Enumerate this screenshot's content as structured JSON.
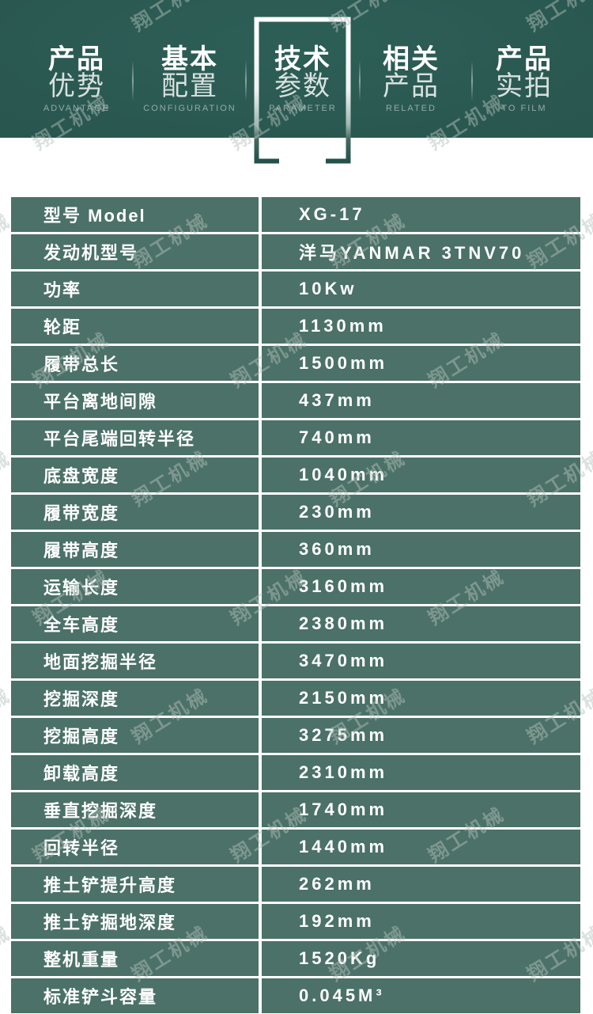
{
  "brand_watermark": {
    "text": "翔工机械"
  },
  "colors": {
    "header_green": "#2a5951",
    "cell_green": "#4b7168",
    "text_white": "#ffffff",
    "watermark_gray": "#d9d9d9"
  },
  "nav": {
    "tabs": [
      {
        "line1": "产品",
        "line2": "优势",
        "caption": "ADVANTAGE",
        "active": false
      },
      {
        "line1": "基本",
        "line2": "配置",
        "caption": "CONFIGURATION",
        "active": false
      },
      {
        "line1": "技术",
        "line2": "参数",
        "caption": "PARAMETER",
        "active": true
      },
      {
        "line1": "相关",
        "line2": "产品",
        "caption": "RELATED",
        "active": false
      },
      {
        "line1": "产品",
        "line2": "实拍",
        "caption": "TO FILM",
        "active": false
      }
    ]
  },
  "spec_table": {
    "rows": [
      {
        "label": "型号 Model",
        "value": "XG-17"
      },
      {
        "label": "发动机型号",
        "value": "洋马YANMAR 3TNV70"
      },
      {
        "label": "功率",
        "value": "10Kw"
      },
      {
        "label": "轮距",
        "value": "1130mm"
      },
      {
        "label": "履带总长",
        "value": "1500mm"
      },
      {
        "label": "平台离地间隙",
        "value": "437mm"
      },
      {
        "label": "平台尾端回转半径",
        "value": "740mm"
      },
      {
        "label": "底盘宽度",
        "value": "1040mm"
      },
      {
        "label": "履带宽度",
        "value": "230mm"
      },
      {
        "label": "履带高度",
        "value": "360mm"
      },
      {
        "label": "运输长度",
        "value": "3160mm"
      },
      {
        "label": "全车高度",
        "value": "2380mm"
      },
      {
        "label": "地面挖掘半径",
        "value": "3470mm"
      },
      {
        "label": "挖掘深度",
        "value": "2150mm"
      },
      {
        "label": "挖掘高度",
        "value": "3275mm"
      },
      {
        "label": "卸载高度",
        "value": "2310mm"
      },
      {
        "label": "垂直挖掘深度",
        "value": "1740mm"
      },
      {
        "label": "回转半径",
        "value": "1440mm"
      },
      {
        "label": "推土铲提升高度",
        "value": "262mm"
      },
      {
        "label": "推土铲掘地深度",
        "value": "192mm"
      },
      {
        "label": "整机重量",
        "value": "1520Kg"
      },
      {
        "label": "标准铲斗容量",
        "value": "0.045M³"
      }
    ]
  }
}
